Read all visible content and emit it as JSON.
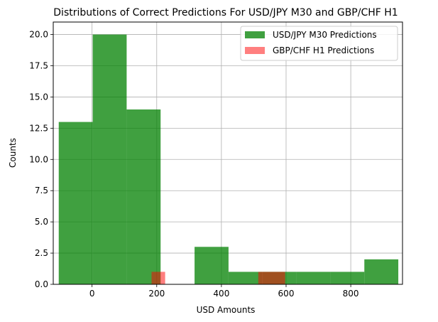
{
  "chart_data": {
    "type": "histogram",
    "title": "Distributions of Correct Predictions For USD/JPY M30 and GBP/CHF H1",
    "xlabel": "USD Amounts",
    "ylabel": "Counts",
    "xlim": [
      -120,
      960
    ],
    "ylim": [
      0,
      21
    ],
    "xticks": [
      0,
      200,
      400,
      600,
      800
    ],
    "xtick_labels": [
      "0",
      "200",
      "400",
      "600",
      "800"
    ],
    "yticks": [
      0,
      2.5,
      5,
      7.5,
      10,
      12.5,
      15,
      17.5,
      20
    ],
    "ytick_labels": [
      "0.0",
      "2.5",
      "5.0",
      "7.5",
      "10.0",
      "12.5",
      "15.0",
      "17.5",
      "20.0"
    ],
    "grid": true,
    "legend_position": "top-right",
    "series": [
      {
        "name": "USD/JPY M30 Predictions",
        "color": "#008000",
        "opacity": 0.75,
        "bins": [
          {
            "x0": -103,
            "x1": 2,
            "count": 13
          },
          {
            "x0": 2,
            "x1": 107,
            "count": 20
          },
          {
            "x0": 107,
            "x1": 212,
            "count": 14
          },
          {
            "x0": 212,
            "x1": 317,
            "count": 0
          },
          {
            "x0": 317,
            "x1": 422,
            "count": 3
          },
          {
            "x0": 422,
            "x1": 527,
            "count": 1
          },
          {
            "x0": 527,
            "x1": 632,
            "count": 1
          },
          {
            "x0": 632,
            "x1": 737,
            "count": 1
          },
          {
            "x0": 737,
            "x1": 842,
            "count": 1
          },
          {
            "x0": 842,
            "x1": 947,
            "count": 2
          }
        ]
      },
      {
        "name": "GBP/CHF H1 Predictions",
        "color": "#ff0000",
        "opacity": 0.5,
        "bins": [
          {
            "x0": 184,
            "x1": 226,
            "count": 1
          },
          {
            "x0": 226,
            "x1": 514,
            "count": 0
          },
          {
            "x0": 514,
            "x1": 597,
            "count": 1
          }
        ]
      }
    ]
  }
}
